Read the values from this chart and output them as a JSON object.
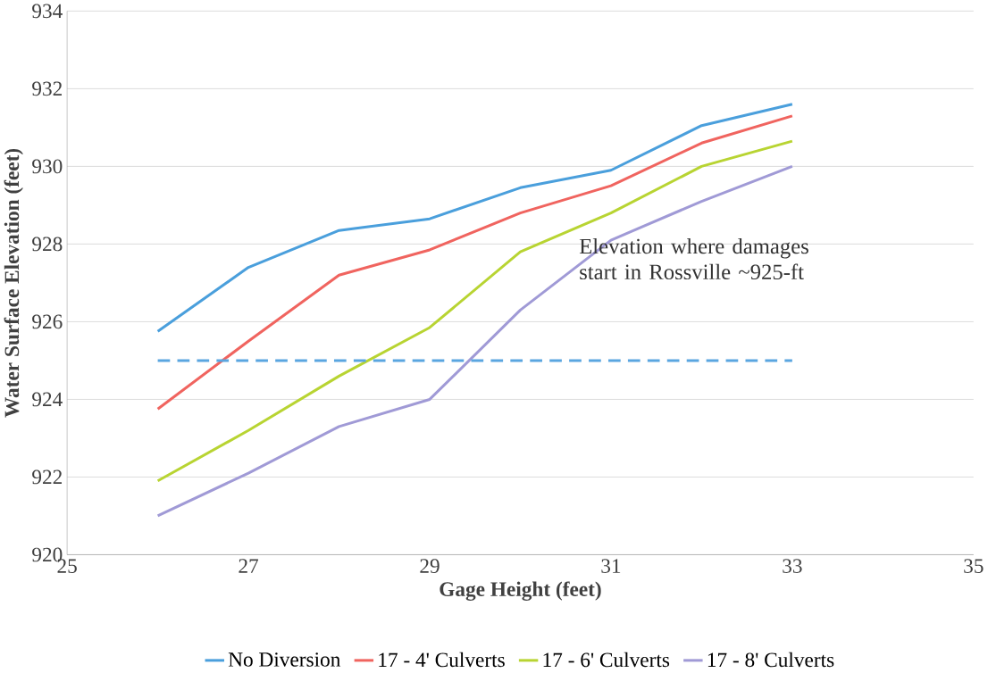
{
  "chart_data": {
    "type": "line",
    "xlabel": "Gage Height (feet)",
    "ylabel": "Water Surface Elevation (feet)",
    "x": [
      26,
      27,
      28,
      29,
      30,
      31,
      32,
      33
    ],
    "series": [
      {
        "name": "No Diversion",
        "color": "#4a9fdc",
        "values": [
          925.75,
          927.4,
          928.35,
          928.65,
          929.45,
          929.9,
          931.05,
          931.6
        ]
      },
      {
        "name": "17 - 4' Culverts",
        "color": "#f0645f",
        "values": [
          923.75,
          925.5,
          927.2,
          927.85,
          928.8,
          929.5,
          930.6,
          931.3
        ]
      },
      {
        "name": "17 - 6' Culverts",
        "color": "#b8d432",
        "values": [
          921.9,
          923.2,
          924.6,
          925.85,
          927.8,
          928.8,
          930.0,
          930.65
        ]
      },
      {
        "name": "17 - 8' Culverts",
        "color": "#a09ad6",
        "values": [
          921.0,
          922.1,
          923.3,
          924.0,
          926.3,
          928.1,
          929.1,
          930.0
        ]
      },
      {
        "type": "line",
        "color": "#5aa6e0",
        "line_style": "dashed",
        "x": [
          26,
          33
        ],
        "values": [
          925,
          925
        ]
      }
    ],
    "annotations": [
      "Elevation where damages start in Rossville ~925-ft"
    ],
    "xlim": [
      25,
      35
    ],
    "xticks": [
      25,
      27,
      29,
      31,
      33,
      35
    ],
    "ylim": [
      920,
      934
    ],
    "yticks": [
      920,
      922,
      924,
      926,
      928,
      930,
      932,
      934
    ],
    "grid": "y",
    "legend": "bottom",
    "marker": "none",
    "line_style": "solid"
  }
}
